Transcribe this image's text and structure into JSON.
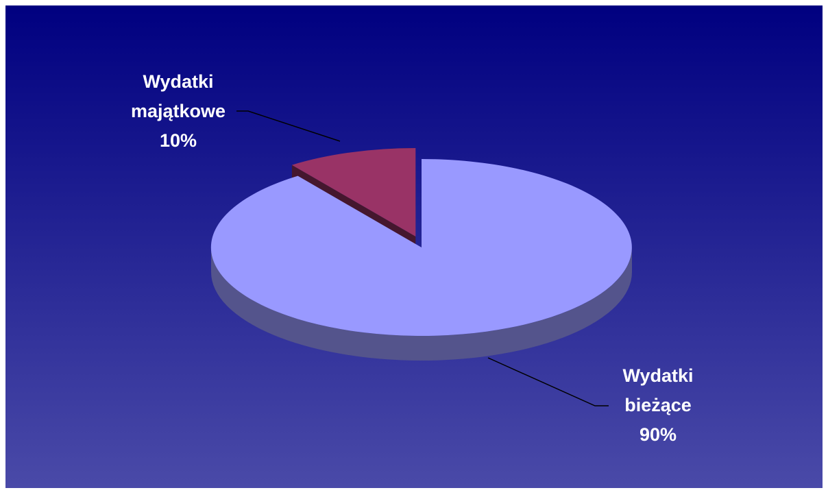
{
  "chart_data": {
    "type": "pie",
    "categories": [
      "Wydatki bieżące",
      "Wydatki majątkowe"
    ],
    "values": [
      90,
      10
    ],
    "value_labels": [
      "90%",
      "10%"
    ],
    "colors": [
      "#9999ff",
      "#993366"
    ]
  }
}
